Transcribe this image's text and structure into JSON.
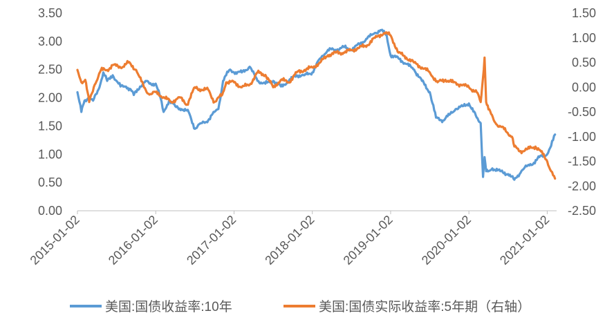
{
  "chart_data": {
    "type": "line",
    "title": "",
    "xlabel": "",
    "ylabel": "",
    "y2label": "",
    "x_ticks": [
      "2015-01-02",
      "2016-01-02",
      "2017-01-02",
      "2018-01-02",
      "2019-01-02",
      "2020-01-02",
      "2021-01-02"
    ],
    "x_range": [
      2015.0,
      2021.12
    ],
    "ylim_left": [
      0.0,
      3.5
    ],
    "yticks_left": [
      "0.00",
      "0.50",
      "1.00",
      "1.50",
      "2.00",
      "2.50",
      "3.00",
      "3.50"
    ],
    "ylim_right": [
      -2.5,
      1.5
    ],
    "yticks_right": [
      "-2.50",
      "-2.00",
      "-1.50",
      "-1.00",
      "-0.50",
      "0.00",
      "0.50",
      "1.00",
      "1.50"
    ],
    "grid": false,
    "legend_position": "bottom",
    "series": [
      {
        "name": "美国:国债收益率:10年",
        "axis": "left",
        "color": "#5B9BD5",
        "x": [
          2015.0,
          2015.05,
          2015.09,
          2015.14,
          2015.2,
          2015.27,
          2015.33,
          2015.38,
          2015.45,
          2015.5,
          2015.55,
          2015.62,
          2015.68,
          2015.72,
          2015.8,
          2015.87,
          2015.92,
          2016.0,
          2016.05,
          2016.1,
          2016.17,
          2016.25,
          2016.33,
          2016.42,
          2016.5,
          2016.58,
          2016.67,
          2016.75,
          2016.8,
          2016.86,
          2016.9,
          2016.95,
          2017.0,
          2017.1,
          2017.2,
          2017.3,
          2017.4,
          2017.5,
          2017.6,
          2017.7,
          2017.8,
          2017.9,
          2018.0,
          2018.1,
          2018.2,
          2018.3,
          2018.4,
          2018.5,
          2018.6,
          2018.7,
          2018.8,
          2018.88,
          2018.95,
          2019.0,
          2019.1,
          2019.2,
          2019.3,
          2019.4,
          2019.5,
          2019.58,
          2019.67,
          2019.75,
          2019.83,
          2019.92,
          2020.0,
          2020.1,
          2020.15,
          2020.18,
          2020.2,
          2020.22,
          2020.25,
          2020.3,
          2020.4,
          2020.5,
          2020.58,
          2020.67,
          2020.75,
          2020.83,
          2020.9,
          2021.0,
          2021.05,
          2021.1
        ],
        "values": [
          2.1,
          1.75,
          1.95,
          2.0,
          1.95,
          2.15,
          2.45,
          2.3,
          2.4,
          2.3,
          2.2,
          2.2,
          2.15,
          2.05,
          2.2,
          2.3,
          2.25,
          2.25,
          2.05,
          1.75,
          1.95,
          1.85,
          1.8,
          1.75,
          1.45,
          1.55,
          1.6,
          1.75,
          1.8,
          2.3,
          2.4,
          2.5,
          2.45,
          2.45,
          2.55,
          2.3,
          2.25,
          2.3,
          2.2,
          2.3,
          2.4,
          2.4,
          2.45,
          2.7,
          2.85,
          2.85,
          2.9,
          2.85,
          2.95,
          3.05,
          3.15,
          3.2,
          3.1,
          2.75,
          2.7,
          2.6,
          2.5,
          2.3,
          2.1,
          1.65,
          1.6,
          1.7,
          1.8,
          1.85,
          1.9,
          1.65,
          1.55,
          0.6,
          0.95,
          0.7,
          0.7,
          0.75,
          0.7,
          0.65,
          0.55,
          0.7,
          0.8,
          0.85,
          0.95,
          1.0,
          1.15,
          1.35
        ]
      },
      {
        "name": "美国:国债实际收益率:5年期（右轴）",
        "axis": "right",
        "color": "#ED7D31",
        "x": [
          2015.0,
          2015.05,
          2015.1,
          2015.15,
          2015.22,
          2015.3,
          2015.38,
          2015.45,
          2015.55,
          2015.65,
          2015.75,
          2015.85,
          2015.92,
          2016.0,
          2016.1,
          2016.2,
          2016.3,
          2016.4,
          2016.5,
          2016.58,
          2016.67,
          2016.75,
          2016.85,
          2016.9,
          2017.0,
          2017.1,
          2017.2,
          2017.3,
          2017.4,
          2017.5,
          2017.6,
          2017.7,
          2017.8,
          2017.9,
          2018.0,
          2018.1,
          2018.2,
          2018.3,
          2018.4,
          2018.5,
          2018.6,
          2018.7,
          2018.8,
          2018.85,
          2018.92,
          2019.0,
          2019.1,
          2019.2,
          2019.3,
          2019.4,
          2019.5,
          2019.6,
          2019.7,
          2019.8,
          2019.9,
          2020.0,
          2020.1,
          2020.15,
          2020.18,
          2020.2,
          2020.22,
          2020.25,
          2020.35,
          2020.45,
          2020.55,
          2020.58,
          2020.65,
          2020.75,
          2020.85,
          2020.92,
          2021.0,
          2021.05,
          2021.1
        ],
        "values": [
          0.35,
          0.1,
          0.15,
          -0.3,
          0.05,
          0.35,
          0.35,
          0.45,
          0.4,
          0.5,
          0.35,
          0.0,
          -0.15,
          -0.1,
          -0.2,
          -0.3,
          -0.2,
          -0.35,
          0.0,
          -0.05,
          -0.05,
          -0.3,
          -0.15,
          0.1,
          0.1,
          0.0,
          0.05,
          0.3,
          0.25,
          0.0,
          0.15,
          0.1,
          0.3,
          0.35,
          0.4,
          0.5,
          0.65,
          0.7,
          0.7,
          0.75,
          0.8,
          0.85,
          1.0,
          1.05,
          1.1,
          1.05,
          0.7,
          0.6,
          0.5,
          0.4,
          0.3,
          0.1,
          0.15,
          0.1,
          0.05,
          0.0,
          -0.1,
          -0.3,
          0.2,
          0.6,
          -0.3,
          -0.45,
          -0.75,
          -0.85,
          -1.0,
          -1.2,
          -1.3,
          -1.25,
          -1.2,
          -1.3,
          -1.5,
          -1.7,
          -1.85
        ]
      }
    ]
  }
}
